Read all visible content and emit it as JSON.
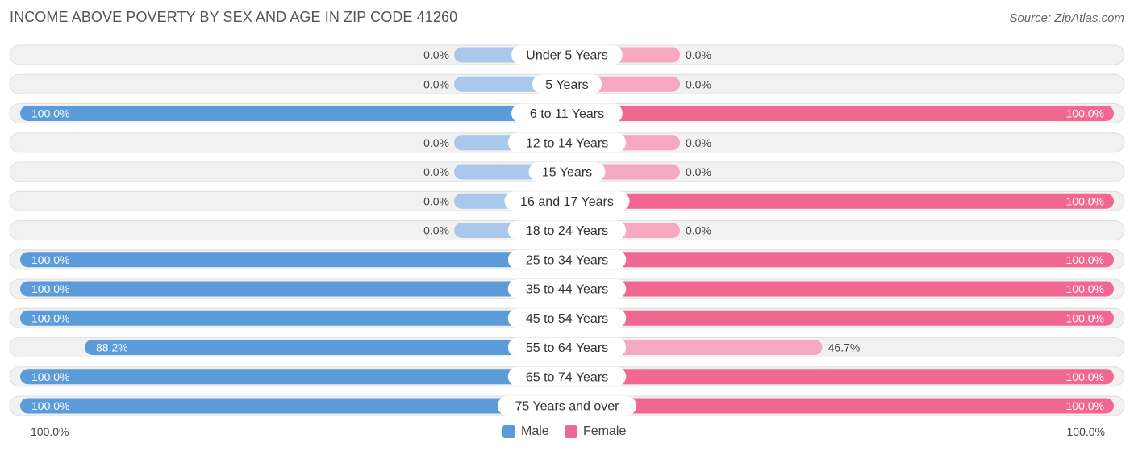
{
  "header": {
    "title": "INCOME ABOVE POVERTY BY SEX AND AGE IN ZIP CODE 41260",
    "source": "Source: ZipAtlas.com"
  },
  "colors": {
    "male": "#5b9bd9",
    "male_light": "#a9c8eb",
    "female": "#f06792",
    "female_light": "#f7a8c1",
    "track": "#f1f1f1",
    "track_border": "#dedede"
  },
  "legend": {
    "male_label": "Male",
    "female_label": "Female"
  },
  "axis": {
    "left_label": "100.0%",
    "right_label": "100.0%"
  },
  "chart_data": {
    "type": "bar",
    "orientation": "horizontal-diverging",
    "title": "INCOME ABOVE POVERTY BY SEX AND AGE IN ZIP CODE 41260",
    "categories": [
      "Under 5 Years",
      "5 Years",
      "6 to 11 Years",
      "12 to 14 Years",
      "15 Years",
      "16 and 17 Years",
      "18 to 24 Years",
      "25 to 34 Years",
      "35 to 44 Years",
      "45 to 54 Years",
      "55 to 64 Years",
      "65 to 74 Years",
      "75 Years and over"
    ],
    "series": [
      {
        "name": "Male",
        "values": [
          0.0,
          0.0,
          100.0,
          0.0,
          0.0,
          0.0,
          0.0,
          100.0,
          100.0,
          100.0,
          88.2,
          100.0,
          100.0
        ],
        "labels": [
          "0.0%",
          "0.0%",
          "100.0%",
          "0.0%",
          "0.0%",
          "0.0%",
          "0.0%",
          "100.0%",
          "100.0%",
          "100.0%",
          "88.2%",
          "100.0%",
          "100.0%"
        ]
      },
      {
        "name": "Female",
        "values": [
          0.0,
          0.0,
          100.0,
          0.0,
          0.0,
          100.0,
          0.0,
          100.0,
          100.0,
          100.0,
          46.7,
          100.0,
          100.0
        ],
        "labels": [
          "0.0%",
          "0.0%",
          "100.0%",
          "0.0%",
          "0.0%",
          "100.0%",
          "0.0%",
          "100.0%",
          "100.0%",
          "100.0%",
          "46.7%",
          "100.0%",
          "100.0%"
        ]
      }
    ],
    "xlim": [
      -100,
      100
    ],
    "legend_position": "bottom-center"
  }
}
